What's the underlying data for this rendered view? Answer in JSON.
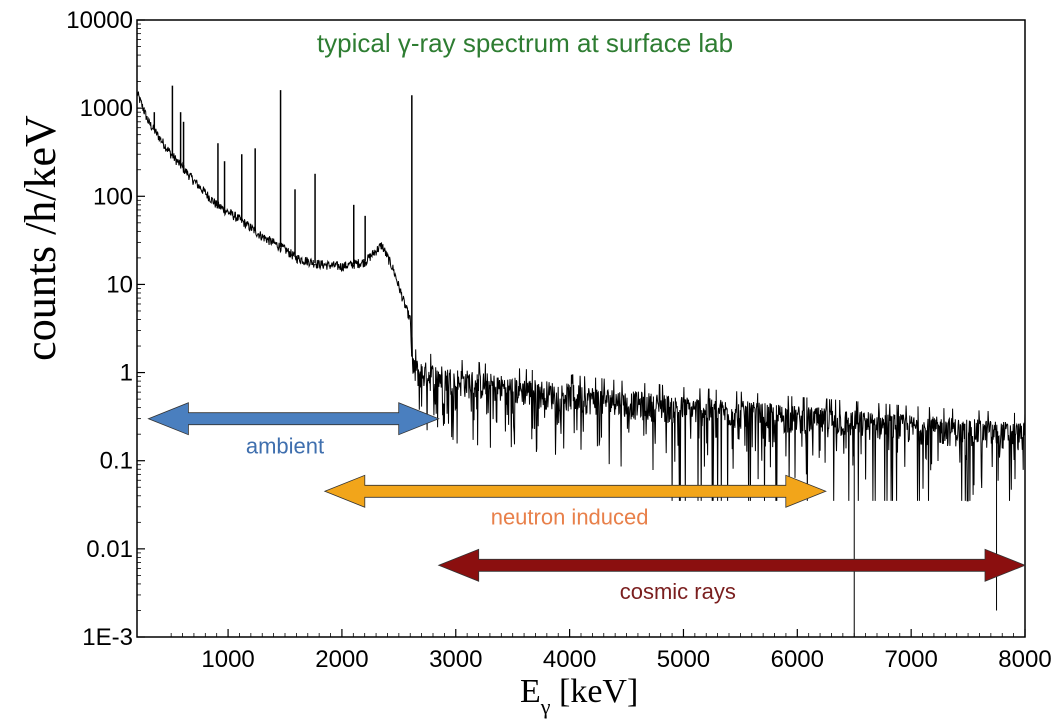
{
  "chart_data": {
    "type": "line",
    "title": "typical γ-ray spectrum at surface lab",
    "title_color": "#2e7d32",
    "ylabel": "counts /h/keV",
    "xlabel_main": "E",
    "xlabel_sub": "γ",
    "xlabel_unit": " [keV]",
    "xlim": [
      200,
      8000
    ],
    "ylim": [
      0.001,
      10000
    ],
    "yscale": "log",
    "grid": false,
    "x_ticks": [
      1000,
      2000,
      3000,
      4000,
      5000,
      6000,
      7000,
      8000
    ],
    "x_tick_labels": [
      "1000",
      "2000",
      "3000",
      "4000",
      "5000",
      "6000",
      "7000",
      "8000"
    ],
    "y_ticks": [
      0.001,
      0.01,
      0.1,
      1,
      10,
      100,
      1000,
      10000
    ],
    "y_tick_labels": [
      "1E-3",
      "0.01",
      "0.1",
      "1",
      "10",
      "100",
      "1000",
      "10000"
    ],
    "series": [
      {
        "color": "#000000",
        "continuum_x": [
          200,
          300,
          500,
          700,
          900,
          1100,
          1300,
          1500,
          1600,
          1800,
          2000,
          2200,
          2350,
          2450,
          2550,
          2600,
          2620,
          2700,
          3000,
          3500,
          4000,
          4500,
          5000,
          5500,
          6000,
          6500,
          7000,
          7500,
          8000
        ],
        "continuum_y": [
          1500,
          700,
          300,
          150,
          80,
          55,
          35,
          25,
          20,
          17,
          16,
          18,
          28,
          15,
          6,
          4,
          1,
          0.9,
          0.75,
          0.6,
          0.5,
          0.42,
          0.36,
          0.32,
          0.28,
          0.25,
          0.22,
          0.2,
          0.18
        ],
        "peaks_x": [
          352,
          511,
          583,
          609,
          911,
          969,
          1120,
          1238,
          1461,
          1588,
          1764,
          2104,
          2204,
          2614
        ],
        "peaks_y": [
          900,
          1800,
          900,
          700,
          400,
          250,
          300,
          350,
          1600,
          120,
          180,
          80,
          60,
          1400
        ],
        "spikes_down_x": [
          6500,
          7750
        ],
        "spikes_down_y": [
          0.001,
          0.002
        ]
      }
    ],
    "annotations": [
      {
        "label": "ambient",
        "x_from": 300,
        "x_to": 2850,
        "y": 0.3,
        "fill": "#4a7fbf",
        "text_color": "#3f6fae",
        "text_x": 1500,
        "text_y": 0.12
      },
      {
        "label": "neutron induced",
        "x_from": 1850,
        "x_to": 6250,
        "y": 0.045,
        "fill": "#f2a51a",
        "text_color": "#e8804a",
        "text_x": 4000,
        "text_y": 0.019
      },
      {
        "label": "cosmic rays",
        "x_from": 2850,
        "x_to": 8000,
        "y": 0.0065,
        "fill": "#8b0f0f",
        "text_color": "#7a1e1e",
        "text_x": 4950,
        "text_y": 0.0027
      }
    ]
  }
}
